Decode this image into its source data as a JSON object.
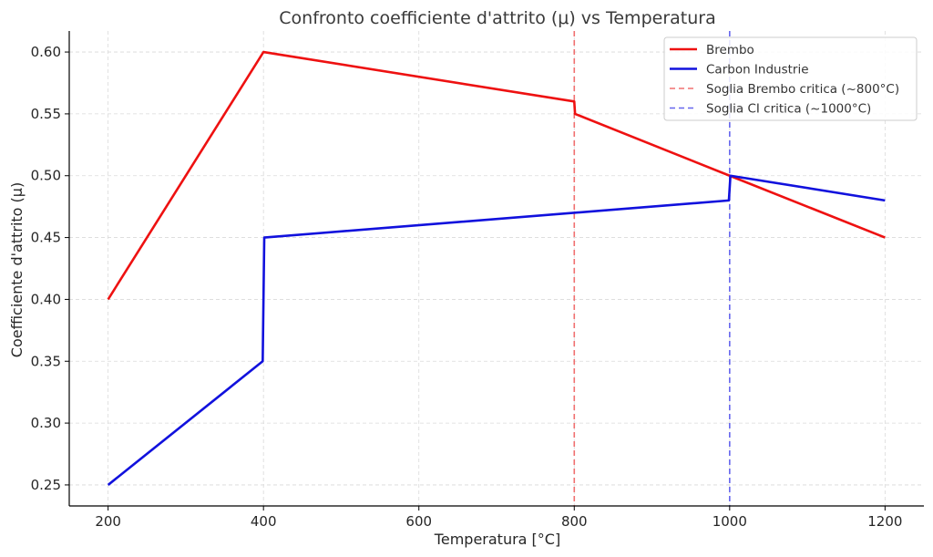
{
  "chart_data": {
    "type": "line",
    "title": "Confronto coefficiente d'attrito (μ) vs Temperatura",
    "xlabel": "Temperatura [°C]",
    "ylabel": "Coefficiente d'attrito (μ)",
    "xlim": [
      150,
      1250
    ],
    "ylim": [
      0.233,
      0.617
    ],
    "xticks": [
      200,
      400,
      600,
      800,
      1000,
      1200
    ],
    "yticks": [
      0.25,
      0.3,
      0.35,
      0.4,
      0.45,
      0.5,
      0.55,
      0.6
    ],
    "ytick_labels": [
      "0.25",
      "0.30",
      "0.35",
      "0.40",
      "0.45",
      "0.50",
      "0.55",
      "0.60"
    ],
    "grid": true,
    "legend_position": "top-right",
    "series": [
      {
        "name": "Brembo",
        "color": "#ee1111",
        "x": [
          200,
          400,
          800,
          801,
          1000,
          1200
        ],
        "y": [
          0.4,
          0.6,
          0.56,
          0.55,
          0.5,
          0.45
        ]
      },
      {
        "name": "Carbon Industrie",
        "color": "#1111dd",
        "x": [
          200,
          399,
          401,
          999,
          1001,
          1200
        ],
        "y": [
          0.25,
          0.35,
          0.45,
          0.48,
          0.5,
          0.48
        ]
      }
    ],
    "reference_lines": [
      {
        "name": "Soglia Brembo critica (~800°C)",
        "x": 800,
        "color": "#f07070",
        "style": "dashed"
      },
      {
        "name": "Soglia CI critica (~1000°C)",
        "x": 1000,
        "color": "#6666ee",
        "style": "dashed"
      }
    ]
  }
}
